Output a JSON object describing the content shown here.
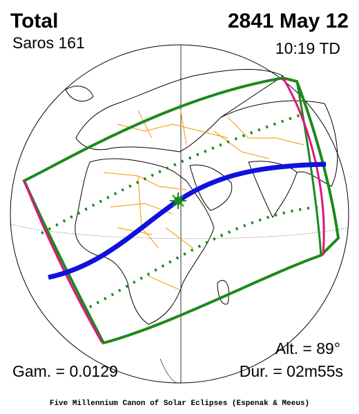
{
  "header": {
    "type": "Total",
    "date": "2841 May 12",
    "saros": "Saros 161",
    "time": "10:19 TD"
  },
  "details": {
    "altitude": "Alt. = 89°",
    "gamma": "Gam. = 0.0129",
    "duration": "Dur. = 02m55s"
  },
  "footer": "Five Millennium Canon of Solar Eclipses (Espenak & Meeus)"
}
